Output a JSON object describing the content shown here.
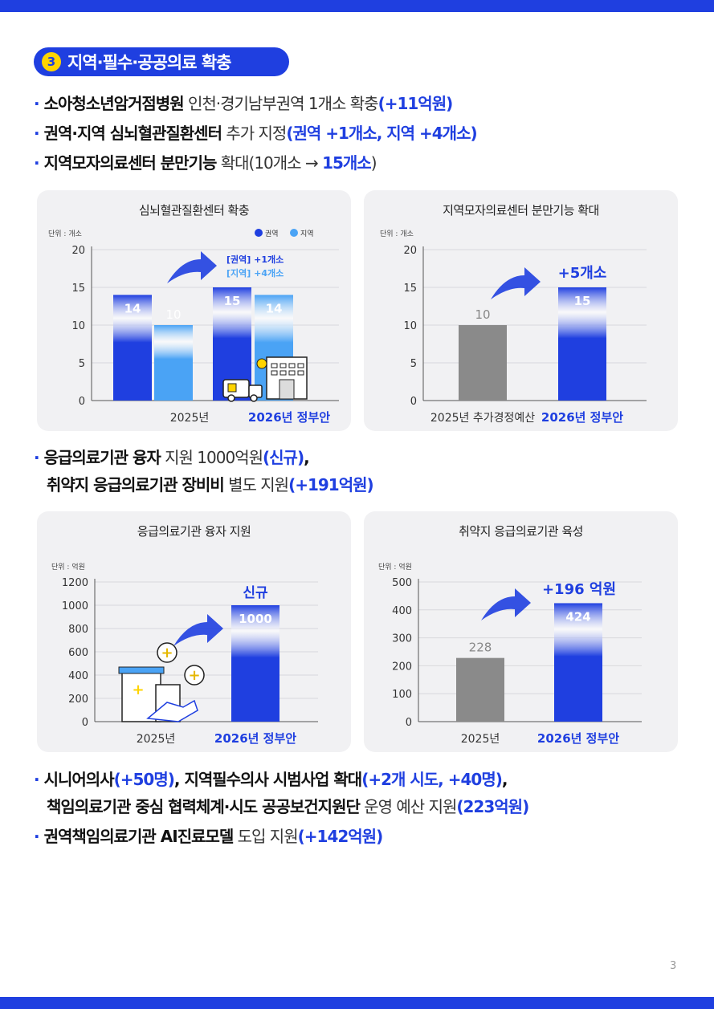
{
  "section": {
    "number": "3",
    "title": "지역·필수·공공의료 확충"
  },
  "bullets_top": [
    {
      "bold": "소아청소년암거점병원",
      "normal": " 인천·경기남부권역 1개소 확충",
      "highlight": "(+11억원)"
    },
    {
      "bold": "권역·지역 심뇌혈관질환센터",
      "normal": " 추가 지정",
      "highlight": "(권역 +1개소, 지역 +4개소)"
    },
    {
      "bold": "지역모자의료센터 분만기능",
      "normal": " 확대(10개소 → ",
      "highlight": "15개소",
      "tail": ")"
    }
  ],
  "bullets_mid": {
    "line1": {
      "bold": "응급의료기관 융자",
      "normal": " 지원 1000억원",
      "highlight": "(신규)",
      "tail": ","
    },
    "line2": {
      "bold": "취약지 응급의료기관 장비비",
      "normal": " 별도 지원",
      "highlight": "(+191억원)"
    }
  },
  "bullets_bottom": {
    "line1": {
      "bold": "시니어의사",
      "hl1": "(+50명)",
      "bold2": ", 지역필수의사 시범사업 확대",
      "hl2": "(+2개 시도, +40명)",
      "tail": ","
    },
    "line2": {
      "bold": "책임의료기관 중심 협력체계·시도 공공보건지원단",
      "normal": " 운영 예산 지원",
      "highlight": "(223억원)"
    },
    "line3": {
      "bold": "권역책임의료기관 AI진료모델",
      "normal": " 도입 지원",
      "highlight": "(+142억원)"
    }
  },
  "page_number": "3",
  "colors": {
    "primary": "#1f3fe0",
    "light": "#4aa3f5",
    "gray": "#888888",
    "accent": "#ffd400"
  },
  "chart_data": [
    {
      "type": "bar",
      "title": "심뇌혈관질환센터 확충",
      "unit": "단위 : 개소",
      "categories": [
        "2025년",
        "2026년 정부안"
      ],
      "series": [
        {
          "name": "권역",
          "values": [
            14,
            15
          ],
          "labels": [
            "14",
            "15"
          ]
        },
        {
          "name": "지역",
          "values": [
            10,
            14
          ],
          "labels": [
            "10",
            "14"
          ]
        }
      ],
      "ylim": [
        0,
        20
      ],
      "yticks": [
        "0",
        "5",
        "10",
        "15",
        "20"
      ],
      "annotations": [
        "[권역] +1개소",
        "[지역] +4개소"
      ],
      "legend": "top-right",
      "icons": [
        "ambulance-icon",
        "hospital-icon"
      ]
    },
    {
      "type": "bar",
      "title": "지역모자의료센터 분만기능 확대",
      "unit": "단위 : 개소",
      "categories": [
        "2025년 추가경정예산",
        "2026년 정부안"
      ],
      "values": [
        10,
        15
      ],
      "labels": [
        "10",
        "15"
      ],
      "ylim": [
        0,
        20
      ],
      "yticks": [
        "0",
        "5",
        "10",
        "15",
        "20"
      ],
      "annotation": "+5개소"
    },
    {
      "type": "bar",
      "title": "응급의료기관 융자 지원",
      "unit": "단위 : 억원",
      "categories": [
        "2025년",
        "2026년 정부안"
      ],
      "values": [
        0,
        1000
      ],
      "labels": [
        "",
        "1000"
      ],
      "ylim": [
        0,
        1200
      ],
      "yticks": [
        "0",
        "200",
        "400",
        "600",
        "800",
        "1000",
        "1200"
      ],
      "annotation": "신규",
      "icons": [
        "hospital-icon",
        "handshake-icon",
        "medical-cross-icon"
      ]
    },
    {
      "type": "bar",
      "title": "취약지 응급의료기관 육성",
      "unit": "단위 : 억원",
      "categories": [
        "2025년",
        "2026년 정부안"
      ],
      "values": [
        228,
        424
      ],
      "labels": [
        "228",
        "424"
      ],
      "ylim": [
        0,
        500
      ],
      "yticks": [
        "0",
        "100",
        "200",
        "300",
        "400",
        "500"
      ],
      "annotation": "+196 억원"
    }
  ]
}
